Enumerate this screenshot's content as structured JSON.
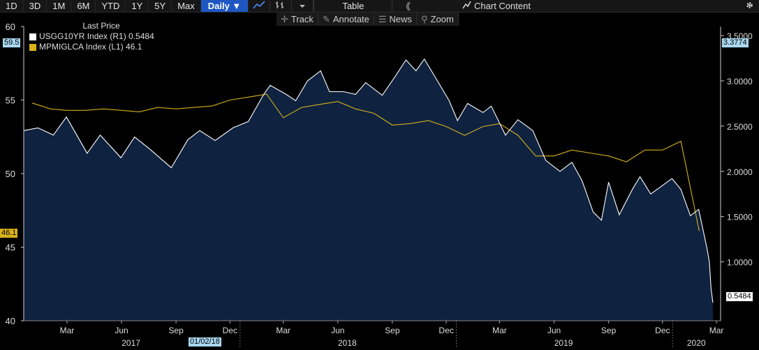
{
  "toolbar": {
    "ranges": [
      "1D",
      "3D",
      "1M",
      "6M",
      "YTD",
      "1Y",
      "5Y",
      "Max"
    ],
    "frequency": "Daily ▼",
    "table_label": "Table",
    "collapse_glyph": "《",
    "chart_content_label": "Chart Content"
  },
  "subtoolbar": {
    "track": "Track",
    "annotate": "Annotate",
    "news": "News",
    "zoom": "Zoom"
  },
  "legend": {
    "title": "Last Price",
    "series": [
      {
        "label": "USGG10YR Index  (R1)  0.5484",
        "color": "#ffffff"
      },
      {
        "label": "MPMIGLCA Index  (L1) 46.1",
        "color": "#d6b11a"
      }
    ]
  },
  "tags": {
    "left_top": "59.5",
    "left_last": "46.1",
    "right_top": "3.3774",
    "right_last": "0.5484",
    "date_tag": "01/02/18"
  },
  "chart_data": {
    "type": "line",
    "x_ticks": [
      "Mar",
      "Jun",
      "Sep",
      "Dec",
      "Mar",
      "Jun",
      "Sep",
      "Dec",
      "Mar",
      "Jun",
      "Sep",
      "Dec",
      "Mar"
    ],
    "years": [
      "2017",
      "2018",
      "2019",
      "2020"
    ],
    "left_axis": {
      "ticks": [
        40,
        45,
        50,
        55,
        60
      ],
      "ylim": [
        40,
        60
      ]
    },
    "right_axis": {
      "ticks": [
        "1.0000",
        "1.5000",
        "2.0000",
        "2.5000",
        "3.0000",
        "3.5000"
      ],
      "ylim": [
        0.35,
        3.6
      ]
    },
    "series": [
      {
        "name": "MPMIGLCA Index",
        "axis": "left",
        "style": "line",
        "color": "#d6b11a",
        "points": [
          [
            "2017-01-15",
            54.8
          ],
          [
            "2017-02-15",
            54.4
          ],
          [
            "2017-03-15",
            54.3
          ],
          [
            "2017-04-15",
            54.3
          ],
          [
            "2017-05-15",
            54.4
          ],
          [
            "2017-06-15",
            54.3
          ],
          [
            "2017-07-15",
            54.2
          ],
          [
            "2017-08-15",
            54.5
          ],
          [
            "2017-09-15",
            54.4
          ],
          [
            "2017-10-15",
            54.5
          ],
          [
            "2017-11-15",
            54.6
          ],
          [
            "2017-12-15",
            55.0
          ],
          [
            "2018-01-15",
            55.2
          ],
          [
            "2018-02-15",
            55.4
          ],
          [
            "2018-03-15",
            53.8
          ],
          [
            "2018-04-15",
            54.5
          ],
          [
            "2018-05-15",
            54.7
          ],
          [
            "2018-06-15",
            54.9
          ],
          [
            "2018-07-15",
            54.4
          ],
          [
            "2018-08-15",
            54.1
          ],
          [
            "2018-09-15",
            53.3
          ],
          [
            "2018-10-15",
            53.4
          ],
          [
            "2018-11-15",
            53.6
          ],
          [
            "2018-12-15",
            53.2
          ],
          [
            "2019-01-15",
            52.6
          ],
          [
            "2019-02-15",
            53.2
          ],
          [
            "2019-03-15",
            53.4
          ],
          [
            "2019-04-15",
            52.6
          ],
          [
            "2019-05-15",
            51.2
          ],
          [
            "2019-06-15",
            51.2
          ],
          [
            "2019-07-15",
            51.6
          ],
          [
            "2019-08-15",
            51.4
          ],
          [
            "2019-09-15",
            51.2
          ],
          [
            "2019-10-15",
            50.8
          ],
          [
            "2019-11-15",
            51.6
          ],
          [
            "2019-12-15",
            51.6
          ],
          [
            "2020-01-15",
            52.2
          ],
          [
            "2020-02-15",
            46.1
          ]
        ]
      },
      {
        "name": "USGG10YR Index",
        "axis": "right",
        "style": "area",
        "color": "#ffffff",
        "points": [
          [
            "2017-01-01",
            2.45
          ],
          [
            "2017-01-25",
            2.48
          ],
          [
            "2017-02-20",
            2.4
          ],
          [
            "2017-03-14",
            2.6
          ],
          [
            "2017-04-18",
            2.2
          ],
          [
            "2017-05-10",
            2.4
          ],
          [
            "2017-06-14",
            2.15
          ],
          [
            "2017-07-07",
            2.38
          ],
          [
            "2017-08-01",
            2.25
          ],
          [
            "2017-09-07",
            2.04
          ],
          [
            "2017-10-05",
            2.35
          ],
          [
            "2017-10-25",
            2.45
          ],
          [
            "2017-11-20",
            2.34
          ],
          [
            "2017-12-20",
            2.48
          ],
          [
            "2018-01-15",
            2.55
          ],
          [
            "2018-02-10",
            2.85
          ],
          [
            "2018-02-21",
            2.95
          ],
          [
            "2018-03-20",
            2.85
          ],
          [
            "2018-04-05",
            2.78
          ],
          [
            "2018-04-25",
            3.0
          ],
          [
            "2018-05-17",
            3.11
          ],
          [
            "2018-06-01",
            2.88
          ],
          [
            "2018-06-25",
            2.88
          ],
          [
            "2018-07-15",
            2.85
          ],
          [
            "2018-08-01",
            2.98
          ],
          [
            "2018-08-29",
            2.84
          ],
          [
            "2018-09-20",
            3.05
          ],
          [
            "2018-10-08",
            3.23
          ],
          [
            "2018-10-25",
            3.11
          ],
          [
            "2018-11-08",
            3.24
          ],
          [
            "2018-11-30",
            3.0
          ],
          [
            "2018-12-20",
            2.78
          ],
          [
            "2019-01-03",
            2.56
          ],
          [
            "2019-01-20",
            2.75
          ],
          [
            "2019-02-15",
            2.65
          ],
          [
            "2019-03-01",
            2.72
          ],
          [
            "2019-03-25",
            2.4
          ],
          [
            "2019-04-15",
            2.57
          ],
          [
            "2019-05-10",
            2.45
          ],
          [
            "2019-06-01",
            2.12
          ],
          [
            "2019-06-25",
            2.0
          ],
          [
            "2019-07-15",
            2.1
          ],
          [
            "2019-08-01",
            1.9
          ],
          [
            "2019-08-20",
            1.55
          ],
          [
            "2019-09-03",
            1.46
          ],
          [
            "2019-09-15",
            1.88
          ],
          [
            "2019-10-03",
            1.52
          ],
          [
            "2019-10-25",
            1.8
          ],
          [
            "2019-11-07",
            1.94
          ],
          [
            "2019-11-25",
            1.75
          ],
          [
            "2019-12-10",
            1.82
          ],
          [
            "2019-12-31",
            1.92
          ],
          [
            "2020-01-15",
            1.8
          ],
          [
            "2020-01-31",
            1.51
          ],
          [
            "2020-02-14",
            1.58
          ],
          [
            "2020-02-28",
            1.15
          ],
          [
            "2020-03-03",
            1.0
          ],
          [
            "2020-03-06",
            0.7
          ],
          [
            "2020-03-09",
            0.5484
          ]
        ]
      }
    ]
  }
}
